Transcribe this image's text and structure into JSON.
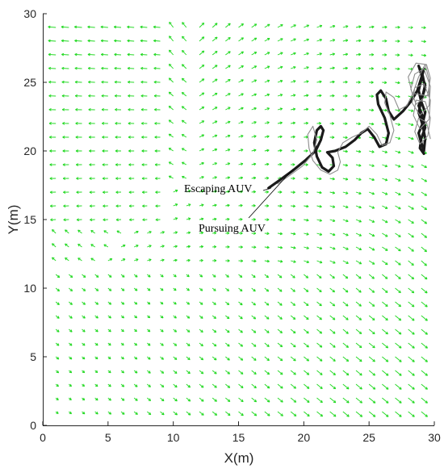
{
  "chart_data": {
    "type": "quiver+line",
    "xlabel": "X(m)",
    "ylabel": "Y(m)",
    "xlim": [
      0,
      30
    ],
    "ylim": [
      0,
      30
    ],
    "xticks": [
      "0",
      "5",
      "10",
      "15",
      "20",
      "25",
      "30"
    ],
    "yticks": [
      "0",
      "5",
      "10",
      "15",
      "20",
      "25",
      "30"
    ],
    "grid": false,
    "vector_field": {
      "color": "#1fd81f",
      "spacing": 1,
      "description_text": ""
    },
    "annotations": [
      {
        "text": "Escaping AUV",
        "points_to": [
          17.5,
          17.3
        ]
      },
      {
        "text": "Pursuing AUV",
        "points_to": [
          19.2,
          18.7
        ]
      }
    ],
    "series": [
      {
        "color": "#1a1a1a",
        "points": [
          [
            17.3,
            17.3
          ],
          [
            18.2,
            17.9
          ],
          [
            19.2,
            18.6
          ],
          [
            20.1,
            19.3
          ],
          [
            20.9,
            20.0
          ],
          [
            21.3,
            20.8
          ],
          [
            21.5,
            21.5
          ],
          [
            21.3,
            21.8
          ],
          [
            21.0,
            21.5
          ],
          [
            20.8,
            20.6
          ],
          [
            21.0,
            19.6
          ],
          [
            21.4,
            18.8
          ],
          [
            21.9,
            18.5
          ],
          [
            22.3,
            18.9
          ],
          [
            22.2,
            19.5
          ],
          [
            21.8,
            19.9
          ],
          [
            22.4,
            20.0
          ],
          [
            23.2,
            20.3
          ],
          [
            23.9,
            20.8
          ],
          [
            24.4,
            21.3
          ],
          [
            24.9,
            21.6
          ],
          [
            25.4,
            21.0
          ],
          [
            25.8,
            20.3
          ],
          [
            26.3,
            20.5
          ],
          [
            26.5,
            21.3
          ],
          [
            26.2,
            22.4
          ],
          [
            25.7,
            23.4
          ],
          [
            25.6,
            24.1
          ],
          [
            25.9,
            24.4
          ],
          [
            26.3,
            23.8
          ],
          [
            26.5,
            22.9
          ],
          [
            26.9,
            22.3
          ],
          [
            27.6,
            22.9
          ],
          [
            28.2,
            23.6
          ],
          [
            28.7,
            24.4
          ],
          [
            29.0,
            25.3
          ],
          [
            29.2,
            26.0
          ],
          [
            29.0,
            25.2
          ],
          [
            28.8,
            24.4
          ],
          [
            29.0,
            23.6
          ],
          [
            29.3,
            22.8
          ],
          [
            29.1,
            22.0
          ],
          [
            28.8,
            21.3
          ],
          [
            29.0,
            20.6
          ],
          [
            29.2,
            20.0
          ],
          [
            29.3,
            20.9
          ],
          [
            29.1,
            21.9
          ],
          [
            28.8,
            22.8
          ],
          [
            29.0,
            23.7
          ],
          [
            29.3,
            24.6
          ],
          [
            29.1,
            25.5
          ],
          [
            28.8,
            26.2
          ],
          [
            29.0,
            25.6
          ],
          [
            29.3,
            24.8
          ],
          [
            29.1,
            24.0
          ],
          [
            28.8,
            23.3
          ],
          [
            29.1,
            22.5
          ],
          [
            29.3,
            21.7
          ],
          [
            29.0,
            20.9
          ],
          [
            28.9,
            20.2
          ],
          [
            29.2,
            19.8
          ]
        ]
      },
      {
        "color": "#8c8c8c",
        "points": [
          [
            18.0,
            17.6
          ],
          [
            18.9,
            18.2
          ],
          [
            19.9,
            18.9
          ],
          [
            20.7,
            19.8
          ],
          [
            21.0,
            20.8
          ],
          [
            20.7,
            21.8
          ],
          [
            20.3,
            21.2
          ],
          [
            20.4,
            20.2
          ],
          [
            20.7,
            19.3
          ],
          [
            21.3,
            18.6
          ],
          [
            22.0,
            18.3
          ],
          [
            22.6,
            18.6
          ],
          [
            22.8,
            19.2
          ],
          [
            22.6,
            19.9
          ],
          [
            23.0,
            20.6
          ],
          [
            23.7,
            21.0
          ],
          [
            24.4,
            21.3
          ],
          [
            25.0,
            21.8
          ],
          [
            25.6,
            21.2
          ],
          [
            26.0,
            20.4
          ],
          [
            26.6,
            20.6
          ],
          [
            26.9,
            21.5
          ],
          [
            26.6,
            22.6
          ],
          [
            26.2,
            23.5
          ],
          [
            26.3,
            24.3
          ],
          [
            26.9,
            23.9
          ],
          [
            27.3,
            23.0
          ],
          [
            27.9,
            23.3
          ],
          [
            28.4,
            24.3
          ],
          [
            28.8,
            25.4
          ],
          [
            29.3,
            26.3
          ],
          [
            29.6,
            25.2
          ],
          [
            29.6,
            24.0
          ],
          [
            28.3,
            24.2
          ],
          [
            28.0,
            25.4
          ],
          [
            28.6,
            26.4
          ],
          [
            29.4,
            26.3
          ],
          [
            29.7,
            25.3
          ],
          [
            29.5,
            24.1
          ],
          [
            28.6,
            23.4
          ],
          [
            28.2,
            24.5
          ],
          [
            28.5,
            25.6
          ],
          [
            29.2,
            26.0
          ],
          [
            29.7,
            24.7
          ],
          [
            29.6,
            23.3
          ],
          [
            28.9,
            22.6
          ],
          [
            28.3,
            23.5
          ],
          [
            28.5,
            24.6
          ],
          [
            29.2,
            24.9
          ],
          [
            29.7,
            23.7
          ],
          [
            29.6,
            22.3
          ],
          [
            28.9,
            21.6
          ],
          [
            28.4,
            22.6
          ],
          [
            28.6,
            23.7
          ],
          [
            29.3,
            23.6
          ],
          [
            29.7,
            22.4
          ],
          [
            29.5,
            21.1
          ],
          [
            28.9,
            20.5
          ],
          [
            28.5,
            21.4
          ],
          [
            28.8,
            22.4
          ],
          [
            29.4,
            22.1
          ],
          [
            29.7,
            20.9
          ]
        ]
      }
    ]
  }
}
